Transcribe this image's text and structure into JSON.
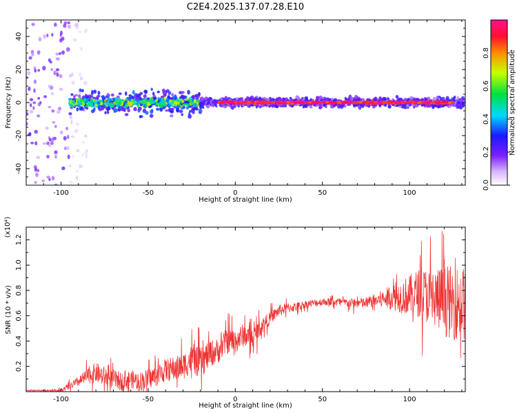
{
  "title": "C2E4.2025.137.07.28.E10",
  "chart_data": [
    {
      "type": "heatmap",
      "xlabel": "Height of straight line (km)",
      "ylabel": "Frequency (Hz)",
      "xlim": [
        -120,
        132
      ],
      "ylim": [
        -50,
        50
      ],
      "x_ticks": [
        -100,
        -50,
        0,
        50,
        100
      ],
      "y_ticks": [
        -40,
        -20,
        0,
        20,
        40
      ],
      "colorbar": {
        "label": "Normalized spectral amplitude",
        "range": [
          0,
          1
        ],
        "ticks": [
          0.0,
          0.2,
          0.4,
          0.6,
          0.8
        ],
        "colormap": [
          "#ffffff",
          "#d9b8ff",
          "#7a1fff",
          "#1a1aff",
          "#00d8ff",
          "#00e040",
          "#c8ff00",
          "#ff8c00",
          "#ff1030",
          "#ff1090"
        ]
      },
      "bands": [
        {
          "x_range": [
            -120,
            -95
          ],
          "freq_halfwidth": 50,
          "amplitude": 0.15
        },
        {
          "x_range": [
            -95,
            -85
          ],
          "freq_halfwidth": 50,
          "amplitude": 0.05
        },
        {
          "x_range": [
            -95,
            -20
          ],
          "freq_halfwidth": 10,
          "amplitude": 0.25
        },
        {
          "x_range": [
            -95,
            -20
          ],
          "freq_halfwidth": 3,
          "amplitude": 0.5
        },
        {
          "x_range": [
            -20,
            132
          ],
          "freq_halfwidth": 4,
          "amplitude": 0.2
        },
        {
          "x_range": [
            -10,
            125
          ],
          "freq_halfwidth": 1,
          "amplitude": 0.95
        }
      ]
    },
    {
      "type": "line",
      "xlabel": "Height of straight line (km)",
      "ylabel": "SNR (10 * v/v)",
      "y_multiplier": "(x10⁴)",
      "xlim": [
        -120,
        132
      ],
      "ylim": [
        0,
        1.3
      ],
      "x_ticks": [
        -100,
        -50,
        0,
        50,
        100
      ],
      "y_ticks": [
        0.2,
        0.4,
        0.6,
        0.8,
        1.0,
        1.2
      ],
      "color": "#ee3333",
      "envelope": {
        "x": [
          -120,
          -100,
          -95,
          -90,
          -85,
          -80,
          -75,
          -70,
          -65,
          -60,
          -55,
          -50,
          -45,
          -40,
          -35,
          -30,
          -25,
          -20,
          -15,
          -10,
          -5,
          0,
          5,
          10,
          15,
          20,
          25,
          30,
          35,
          40,
          45,
          50,
          55,
          60,
          65,
          70,
          75,
          80,
          85,
          90,
          95,
          100,
          105,
          110,
          115,
          120,
          125,
          130,
          132
        ],
        "y": [
          0.01,
          0.01,
          0.04,
          0.08,
          0.12,
          0.15,
          0.12,
          0.1,
          0.08,
          0.1,
          0.08,
          0.1,
          0.13,
          0.17,
          0.18,
          0.2,
          0.26,
          0.22,
          0.3,
          0.32,
          0.4,
          0.4,
          0.45,
          0.42,
          0.52,
          0.58,
          0.64,
          0.66,
          0.67,
          0.69,
          0.7,
          0.71,
          0.71,
          0.71,
          0.7,
          0.7,
          0.7,
          0.72,
          0.73,
          0.75,
          0.75,
          0.76,
          0.78,
          0.76,
          0.74,
          0.72,
          0.7,
          0.7,
          0.7
        ]
      },
      "noise_amplitude": {
        "x": [
          -120,
          -100,
          -90,
          -80,
          -60,
          -40,
          -20,
          -10,
          0,
          10,
          20,
          40,
          60,
          80,
          90,
          100,
          110,
          120,
          132
        ],
        "y": [
          0.005,
          0.01,
          0.04,
          0.08,
          0.07,
          0.09,
          0.12,
          0.1,
          0.1,
          0.08,
          0.05,
          0.03,
          0.03,
          0.05,
          0.1,
          0.16,
          0.22,
          0.28,
          0.3
        ]
      }
    }
  ]
}
